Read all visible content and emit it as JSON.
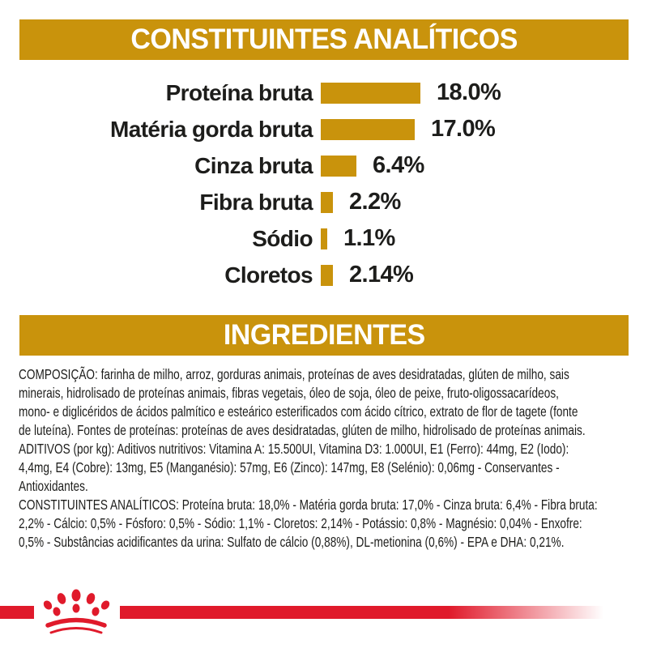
{
  "colors": {
    "gold": "#C9930C",
    "red": "#E01A2B",
    "ink": "#1d1d1b",
    "banner_text": "#ffffff"
  },
  "analytical_section": {
    "title": "CONSTITUINTES ANALÍTICOS"
  },
  "chart_data": {
    "type": "bar",
    "orientation": "horizontal",
    "title": "CONSTITUINTES ANALÍTICOS",
    "categories": [
      "Proteína bruta",
      "Matéria gorda bruta",
      "Cinza bruta",
      "Fibra bruta",
      "Sódio",
      "Cloretos"
    ],
    "values": [
      18.0,
      17.0,
      6.4,
      2.2,
      1.1,
      2.14
    ],
    "value_labels": [
      "18.0%",
      "17.0%",
      "6.4%",
      "2.2%",
      "1.1%",
      "2.14%"
    ],
    "xlim": [
      0,
      18
    ],
    "bar_color": "#C9930C",
    "grid": false,
    "legend": false
  },
  "ingredients_section": {
    "title": "INGREDIENTES",
    "lines": [
      "COMPOSIÇÃO: farinha de milho, arroz, gorduras animais, proteínas de aves desidratadas, glúten de milho, sais",
      "minerais, hidrolisado de proteínas animais, fibras vegetais, óleo de soja, óleo de peixe, fruto-oligossacarídeos,",
      "mono- e diglicéridos de ácidos palmítico e esteárico esterificados com ácido cítrico, extrato de flor de tagete (fonte",
      "de luteína). Fontes de proteínas: proteínas de aves desidratadas, glúten de milho, hidrolisado de proteínas animais.",
      "ADITIVOS (por kg): Aditivos nutritivos: Vitamina A: 15.500UI, Vitamina D3: 1.000UI, E1 (Ferro): 44mg, E2 (Iodo):",
      "4,4mg, E4 (Cobre): 13mg, E5 (Manganésio): 57mg, E6 (Zinco): 147mg, E8 (Selénio): 0,06mg - Conservantes -",
      "Antioxidantes.",
      "CONSTITUINTES ANALÍTICOS: Proteína bruta: 18,0% - Matéria gorda bruta: 17,0% - Cinza bruta: 6,4% - Fibra bruta:",
      "2,2% - Cálcio: 0,5% - Fósforo: 0,5% - Sódio: 1,1% - Cloretos: 2,14% - Potássio: 0,8% - Magnésio: 0,04% - Enxofre:",
      "0,5% - Substâncias acidificantes da urina: Sulfato de cálcio (0,88%), DL-metionina (0,6%) - EPA e DHA: 0,21%."
    ]
  },
  "footer": {
    "brand_mark": "royal-canin-crown"
  }
}
